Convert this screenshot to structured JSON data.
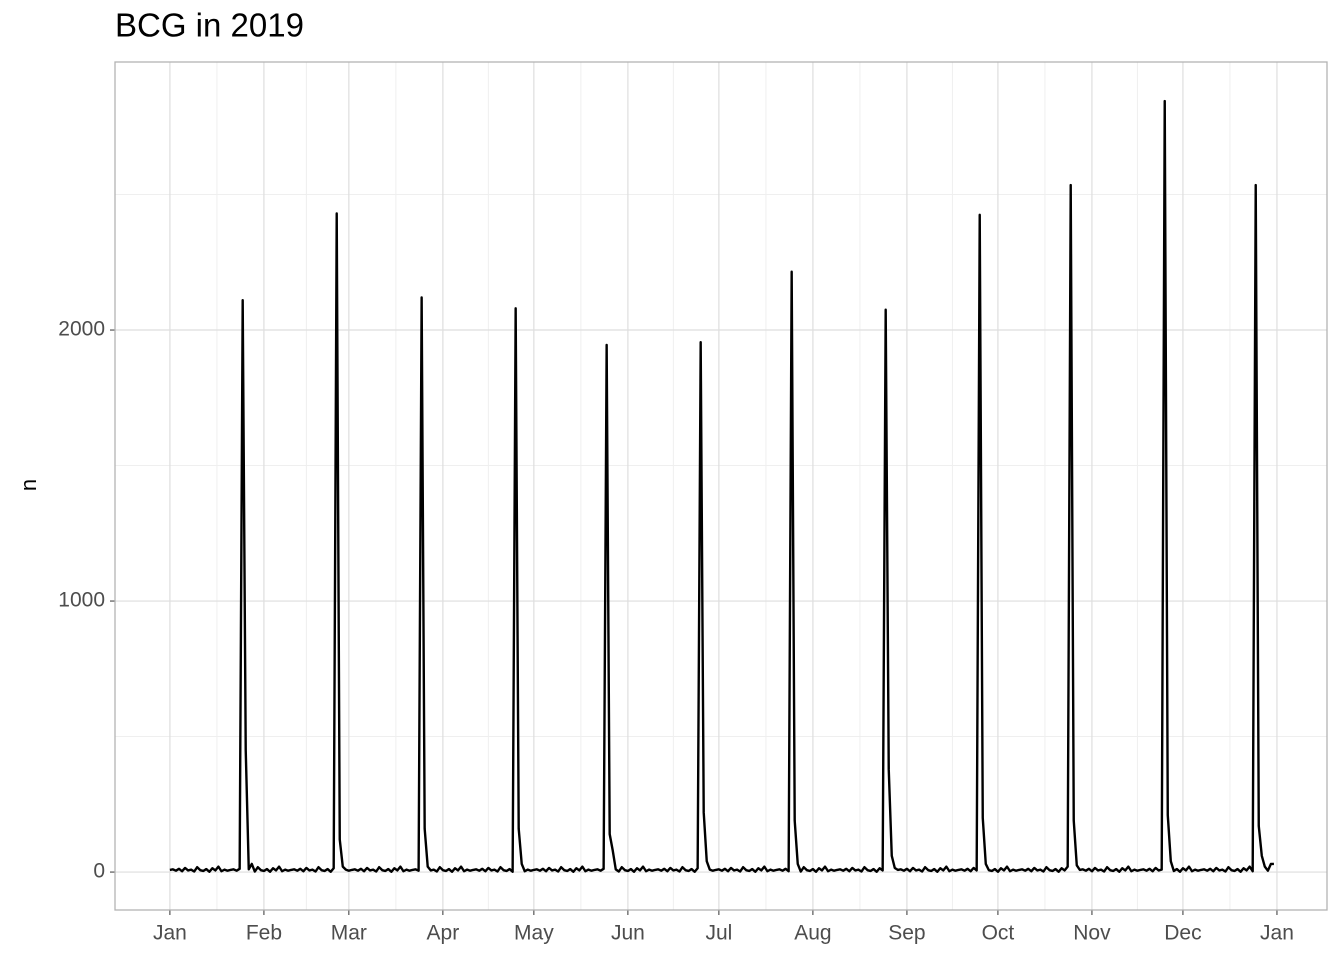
{
  "chart_data": {
    "type": "line",
    "title": "BCG in 2019",
    "ylabel": "n",
    "x": [
      0,
      1,
      2,
      3,
      4,
      5,
      6,
      7,
      8,
      9,
      10,
      11,
      12,
      13,
      14,
      15,
      16,
      17,
      18,
      19,
      20,
      21,
      22,
      23,
      24,
      25,
      26,
      27,
      28,
      29,
      30,
      31,
      32,
      33,
      34,
      35,
      36,
      37,
      38,
      39,
      40,
      41,
      42,
      43,
      44,
      45,
      46,
      47,
      48,
      49,
      50,
      51,
      52,
      53,
      54,
      55,
      56,
      57,
      58,
      59,
      60,
      61,
      62,
      63,
      64,
      65,
      66,
      67,
      68,
      69,
      70,
      71,
      72,
      73,
      74,
      75,
      76,
      77,
      78,
      79,
      80,
      81,
      82,
      83,
      84,
      85,
      86,
      87,
      88,
      89,
      90,
      91,
      92,
      93,
      94,
      95,
      96,
      97,
      98,
      99,
      100,
      101,
      102,
      103,
      104,
      105,
      106,
      107,
      108,
      109,
      110,
      111,
      112,
      113,
      114,
      115,
      116,
      117,
      118,
      119,
      120,
      121,
      122,
      123,
      124,
      125,
      126,
      127,
      128,
      129,
      130,
      131,
      132,
      133,
      134,
      135,
      136,
      137,
      138,
      139,
      140,
      141,
      142,
      143,
      144,
      145,
      146,
      147,
      148,
      149,
      150,
      151,
      152,
      153,
      154,
      155,
      156,
      157,
      158,
      159,
      160,
      161,
      162,
      163,
      164,
      165,
      166,
      167,
      168,
      169,
      170,
      171,
      172,
      173,
      174,
      175,
      176,
      177,
      178,
      179,
      180,
      181,
      182,
      183,
      184,
      185,
      186,
      187,
      188,
      189,
      190,
      191,
      192,
      193,
      194,
      195,
      196,
      197,
      198,
      199,
      200,
      201,
      202,
      203,
      204,
      205,
      206,
      207,
      208,
      209,
      210,
      211,
      212,
      213,
      214,
      215,
      216,
      217,
      218,
      219,
      220,
      221,
      222,
      223,
      224,
      225,
      226,
      227,
      228,
      229,
      230,
      231,
      232,
      233,
      234,
      235,
      236,
      237,
      238,
      239,
      240,
      241,
      242,
      243,
      244,
      245,
      246,
      247,
      248,
      249,
      250,
      251,
      252,
      253,
      254,
      255,
      256,
      257,
      258,
      259,
      260,
      261,
      262,
      263,
      264,
      265,
      266,
      267,
      268,
      269,
      270,
      271,
      272,
      273,
      274,
      275,
      276,
      277,
      278,
      279,
      280,
      281,
      282,
      283,
      284,
      285,
      286,
      287,
      288,
      289,
      290,
      291,
      292,
      293,
      294,
      295,
      296,
      297,
      298,
      299,
      300,
      301,
      302,
      303,
      304,
      305,
      306,
      307,
      308,
      309,
      310,
      311,
      312,
      313,
      314,
      315,
      316,
      317,
      318,
      319,
      320,
      321,
      322,
      323,
      324,
      325,
      326,
      327,
      328,
      329,
      330,
      331,
      332,
      333,
      334,
      335,
      336,
      337,
      338,
      339,
      340,
      341,
      342,
      343,
      344,
      345,
      346,
      347,
      348,
      349,
      350,
      351,
      352,
      353,
      354,
      355,
      356,
      357,
      358,
      359,
      360,
      361,
      362,
      363,
      364
    ],
    "values": [
      8,
      10,
      5,
      12,
      3,
      15,
      6,
      9,
      2,
      18,
      7,
      4,
      11,
      1,
      14,
      6,
      20,
      3,
      9,
      5,
      8,
      10,
      5,
      12,
      2110,
      450,
      10,
      30,
      2,
      18,
      7,
      4,
      11,
      1,
      14,
      6,
      20,
      3,
      9,
      5,
      8,
      10,
      5,
      12,
      3,
      15,
      6,
      9,
      2,
      18,
      7,
      4,
      11,
      1,
      14,
      2430,
      120,
      20,
      9,
      5,
      8,
      10,
      5,
      12,
      3,
      15,
      6,
      9,
      2,
      18,
      7,
      4,
      11,
      1,
      14,
      6,
      20,
      3,
      9,
      5,
      8,
      10,
      5,
      2120,
      160,
      20,
      6,
      9,
      2,
      18,
      7,
      4,
      11,
      1,
      14,
      6,
      20,
      3,
      9,
      5,
      8,
      10,
      5,
      12,
      3,
      15,
      6,
      9,
      2,
      18,
      7,
      4,
      11,
      1,
      2080,
      160,
      30,
      3,
      9,
      5,
      8,
      10,
      5,
      12,
      3,
      15,
      6,
      9,
      2,
      18,
      7,
      4,
      11,
      1,
      14,
      6,
      20,
      3,
      9,
      5,
      8,
      10,
      5,
      12,
      1945,
      140,
      80,
      10,
      2,
      18,
      7,
      4,
      11,
      1,
      14,
      6,
      20,
      3,
      9,
      5,
      8,
      10,
      5,
      12,
      3,
      15,
      6,
      9,
      2,
      18,
      7,
      4,
      11,
      1,
      14,
      1955,
      220,
      40,
      9,
      5,
      8,
      10,
      5,
      12,
      3,
      15,
      6,
      9,
      2,
      18,
      7,
      4,
      11,
      1,
      14,
      6,
      20,
      3,
      9,
      5,
      8,
      10,
      5,
      12,
      3,
      2215,
      190,
      30,
      2,
      18,
      7,
      4,
      11,
      1,
      14,
      6,
      20,
      3,
      9,
      5,
      8,
      10,
      5,
      12,
      3,
      15,
      6,
      9,
      2,
      18,
      7,
      4,
      11,
      1,
      14,
      6,
      2075,
      380,
      60,
      15,
      8,
      10,
      5,
      12,
      3,
      15,
      6,
      9,
      2,
      18,
      7,
      4,
      11,
      1,
      14,
      6,
      20,
      3,
      9,
      5,
      8,
      10,
      5,
      12,
      3,
      15,
      6,
      2425,
      200,
      30,
      7,
      4,
      11,
      1,
      14,
      6,
      20,
      3,
      9,
      5,
      8,
      10,
      5,
      12,
      3,
      15,
      6,
      9,
      2,
      18,
      7,
      4,
      11,
      1,
      14,
      6,
      20,
      2535,
      190,
      25,
      8,
      10,
      5,
      12,
      3,
      15,
      6,
      9,
      2,
      18,
      7,
      4,
      11,
      1,
      14,
      6,
      20,
      3,
      9,
      5,
      8,
      10,
      5,
      12,
      3,
      15,
      6,
      9,
      2845,
      210,
      40,
      4,
      11,
      1,
      14,
      6,
      20,
      3,
      9,
      5,
      8,
      10,
      5,
      12,
      3,
      15,
      6,
      9,
      2,
      18,
      7,
      4,
      11,
      1,
      14,
      6,
      20,
      3,
      2535,
      170,
      60,
      20,
      5,
      30,
      30
    ],
    "color": "#000000",
    "xlim": [
      -18.1,
      381.5
    ],
    "xticks": [
      {
        "value": 0,
        "label": "Jan"
      },
      {
        "value": 31,
        "label": "Feb"
      },
      {
        "value": 59,
        "label": "Mar"
      },
      {
        "value": 90,
        "label": "Apr"
      },
      {
        "value": 120,
        "label": "May"
      },
      {
        "value": 151,
        "label": "Jun"
      },
      {
        "value": 181,
        "label": "Jul"
      },
      {
        "value": 212,
        "label": "Aug"
      },
      {
        "value": 243,
        "label": "Sep"
      },
      {
        "value": 273,
        "label": "Oct"
      },
      {
        "value": 304,
        "label": "Nov"
      },
      {
        "value": 334,
        "label": "Dec"
      },
      {
        "value": 365,
        "label": "Jan"
      }
    ],
    "ylim": [
      -140,
      2989
    ],
    "yticks": [
      0,
      1000,
      2000
    ],
    "grid": true
  }
}
